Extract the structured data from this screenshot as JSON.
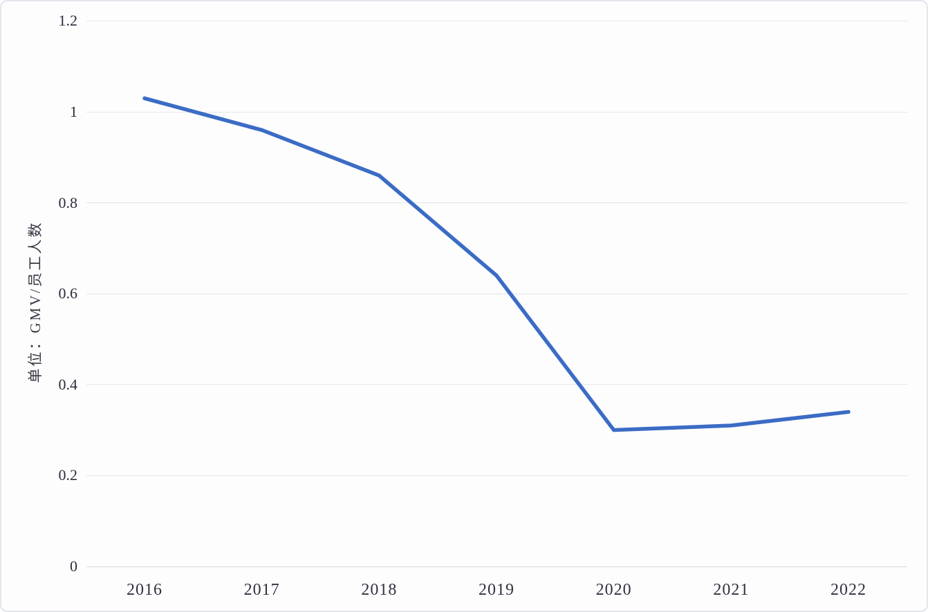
{
  "chart_data": {
    "type": "line",
    "categories": [
      "2016",
      "2017",
      "2018",
      "2019",
      "2020",
      "2021",
      "2022"
    ],
    "values": [
      1.03,
      0.96,
      0.86,
      0.64,
      0.3,
      0.31,
      0.34
    ],
    "series": [
      {
        "name": "GMV/员工人数",
        "values": [
          1.03,
          0.96,
          0.86,
          0.64,
          0.3,
          0.31,
          0.34
        ]
      }
    ],
    "title": "",
    "xlabel": "",
    "ylabel": "单位：GMV/员工人数",
    "ylim": [
      0,
      1.2
    ],
    "yticks": [
      0,
      0.2,
      0.4,
      0.6,
      0.8,
      1,
      1.2
    ],
    "ytick_labels": [
      "0",
      "0.2",
      "0.4",
      "0.6",
      "0.8",
      "1",
      "1.2"
    ],
    "grid": true,
    "legend_position": "none",
    "line_color": "#3b6cc5",
    "line_width": 5.5
  }
}
